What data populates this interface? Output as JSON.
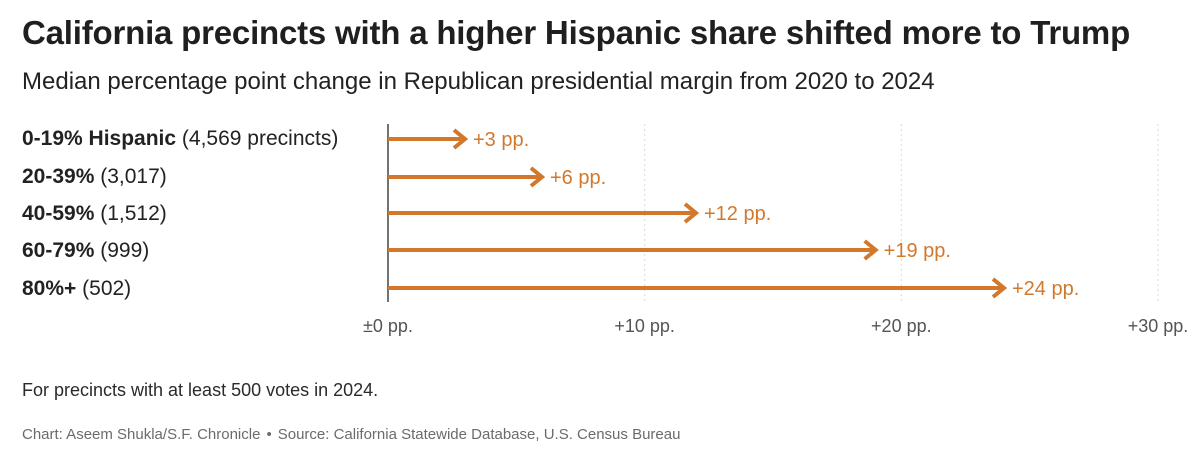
{
  "header": {
    "title": "California precincts with a higher Hispanic share shifted more to Trump",
    "subtitle": "Median percentage point change in Republican presidential margin from 2020 to 2024"
  },
  "rows": [
    {
      "bold": "0-19% Hispanic",
      "count": "(4,569 precincts)"
    },
    {
      "bold": "20-39%",
      "count": "(3,017)"
    },
    {
      "bold": "40-59%",
      "count": "(1,512)"
    },
    {
      "bold": "60-79%",
      "count": "(999)"
    },
    {
      "bold": "80%+",
      "count": "(502)"
    }
  ],
  "chart_data": {
    "type": "bar",
    "title": "California precincts with a higher Hispanic share shifted more to Trump",
    "subtitle": "Median percentage point change in Republican presidential margin from 2020 to 2024",
    "categories": [
      "0-19% Hispanic (4,569 precincts)",
      "20-39% (3,017)",
      "40-59% (1,512)",
      "60-79% (999)",
      "80%+ (502)"
    ],
    "values": [
      3,
      6,
      12,
      19,
      24
    ],
    "data_labels": [
      "+3 pp.",
      "+6 pp.",
      "+12 pp.",
      "+19 pp.",
      "+24 pp."
    ],
    "xlim": [
      0,
      30
    ],
    "xticks": [
      0,
      10,
      20,
      30
    ],
    "xtick_labels": [
      "±0 pp.",
      "+10 pp.",
      "+20 pp.",
      "+30 pp."
    ],
    "orientation": "horizontal",
    "mark": "arrow",
    "grid": true
  },
  "footer": {
    "note": "For precincts with at least 500 votes in 2024.",
    "chart_credit": "Chart: Aseem Shukla/S.F. Chronicle",
    "separator": "•",
    "source": "Source: California Statewide Database, U.S. Census Bureau"
  },
  "colors": {
    "arrow": "#d2782d",
    "label": "#d2782d",
    "grid": "#d9d9d9",
    "axis": "#444444"
  }
}
